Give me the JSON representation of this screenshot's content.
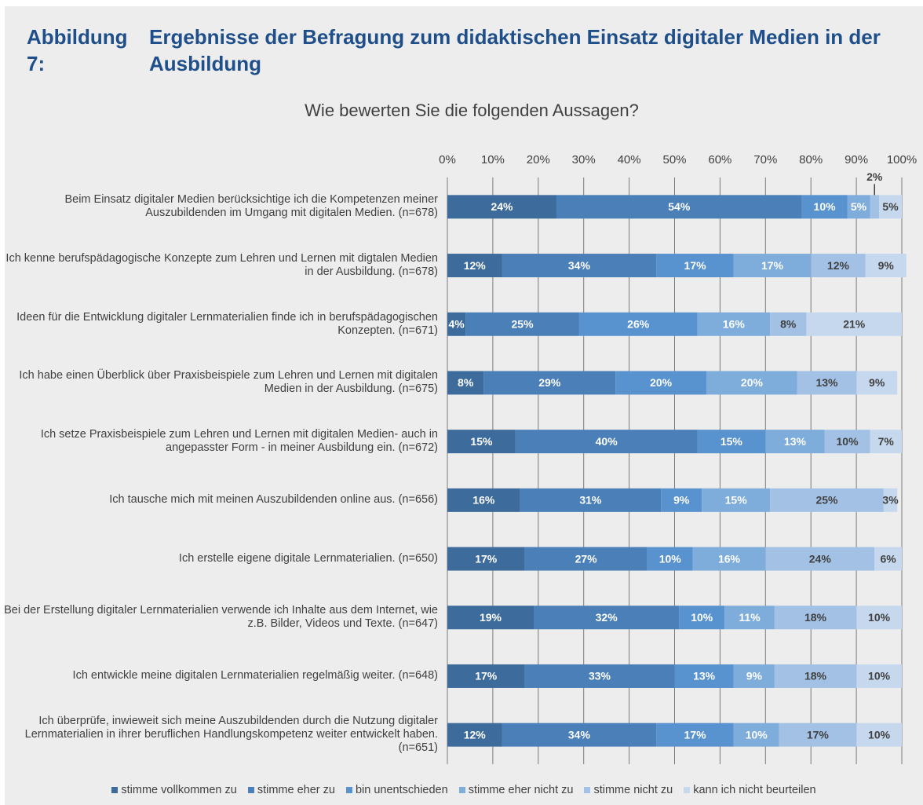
{
  "chart_data": {
    "type": "stacked_barh",
    "figure_label": "Abbildung 7:",
    "figure_title": "Ergebnisse der Befragung zum didaktischen Einsatz digitaler Medien in der Ausbildung",
    "title": "Wie bewerten Sie die folgenden Aussagen?",
    "categories": [
      "Beim Einsatz digitaler Medien berücksichtige ich die Kompetenzen meiner Auszubildenden im Umgang mit digitalen Medien. (n=678)",
      "Ich kenne berufspädagogische Konzepte zum Lehren und Lernen mit digtalen Medien in der Ausbildung. (n=678)",
      "Ideen für die Entwicklung digitaler Lernmaterialien finde ich in berufspädagogischen Konzepten. (n=671)",
      "Ich habe einen Überblick über Praxisbeispiele zum Lehren und Lernen mit digitalen Medien in der Ausbildung. (n=675)",
      "Ich setze Praxisbeispiele zum Lehren und Lernen mit digitalen Medien- auch in angepasster Form - in meiner Ausbildung ein. (n=672)",
      "Ich tausche mich mit meinen Auszubildenden online aus. (n=656)",
      "Ich erstelle eigene digitale Lernmaterialien. (n=650)",
      "Bei der Erstellung digitaler Lernmaterialien verwende ich Inhalte aus dem Internet, wie z.B. Bilder, Videos und Texte. (n=647)",
      "Ich entwickle meine digitalen Lernmaterialien regelmäßig weiter. (n=648)",
      "Ich überprüfe, inwieweit sich meine Auszubildenden durch die Nutzung digitaler Lernmaterialien in ihrer beruflichen Handlungskompetenz weiter entwickelt haben. (n=651)"
    ],
    "series": [
      {
        "name": "stimme vollkommen zu",
        "color": "#3d6b9b",
        "label_color": "#ffffff",
        "values": [
          24,
          12,
          4,
          8,
          15,
          16,
          17,
          19,
          17,
          12
        ],
        "value_labels": [
          "24%",
          "12%",
          "4%",
          "8%",
          "15%",
          "16%",
          "17%",
          "19%",
          "17%",
          "12%"
        ]
      },
      {
        "name": "stimme eher zu",
        "color": "#4a7fb8",
        "label_color": "#ffffff",
        "values": [
          54,
          34,
          25,
          29,
          40,
          31,
          27,
          32,
          33,
          34
        ],
        "value_labels": [
          "54%",
          "34%",
          "25%",
          "29%",
          "40%",
          "31%",
          "27%",
          "32%",
          "33%",
          "34%"
        ]
      },
      {
        "name": "bin unentschieden",
        "color": "#5892cf",
        "label_color": "#ffffff",
        "values": [
          10,
          17,
          26,
          20,
          15,
          9,
          10,
          10,
          13,
          17
        ],
        "value_labels": [
          "10%",
          "17%",
          "26%",
          "20%",
          "15%",
          "9%",
          "10%",
          "10%",
          "13%",
          "17%"
        ]
      },
      {
        "name": "stimme eher nicht zu",
        "color": "#7eaddb",
        "label_color": "#ffffff",
        "values": [
          5,
          17,
          16,
          20,
          13,
          15,
          16,
          11,
          9,
          10
        ],
        "value_labels": [
          "5%",
          "17%",
          "16%",
          "20%",
          "13%",
          "15%",
          "16%",
          "11%",
          "9%",
          "10%"
        ]
      },
      {
        "name": "stimme nicht zu",
        "color": "#a2c1e4",
        "label_color": "#404040",
        "values": [
          2,
          12,
          8,
          13,
          10,
          25,
          24,
          18,
          18,
          17
        ],
        "value_labels": [
          "2%",
          "12%",
          "8%",
          "13%",
          "10%",
          "25%",
          "24%",
          "18%",
          "18%",
          "17%"
        ]
      },
      {
        "name": "kann ich nicht beurteilen",
        "color": "#c6d8ee",
        "label_color": "#404040",
        "values": [
          5,
          9,
          21,
          9,
          7,
          3,
          6,
          10,
          10,
          10
        ],
        "value_labels": [
          "5%",
          "9%",
          "21%",
          "9%",
          "7%",
          "3%",
          "6%",
          "10%",
          "10%",
          "10%"
        ]
      }
    ],
    "xlim": [
      0,
      100
    ],
    "xticks": [
      {
        "value": 0,
        "label": "0%"
      },
      {
        "value": 10,
        "label": "10%"
      },
      {
        "value": 20,
        "label": "20%"
      },
      {
        "value": 30,
        "label": "30%"
      },
      {
        "value": 40,
        "label": "40%"
      },
      {
        "value": 50,
        "label": "50%"
      },
      {
        "value": 60,
        "label": "60%"
      },
      {
        "value": 70,
        "label": "70%"
      },
      {
        "value": 80,
        "label": "80%"
      },
      {
        "value": 90,
        "label": "90%"
      },
      {
        "value": 100,
        "label": "100%"
      }
    ],
    "grid": true,
    "legend": "bottom"
  }
}
